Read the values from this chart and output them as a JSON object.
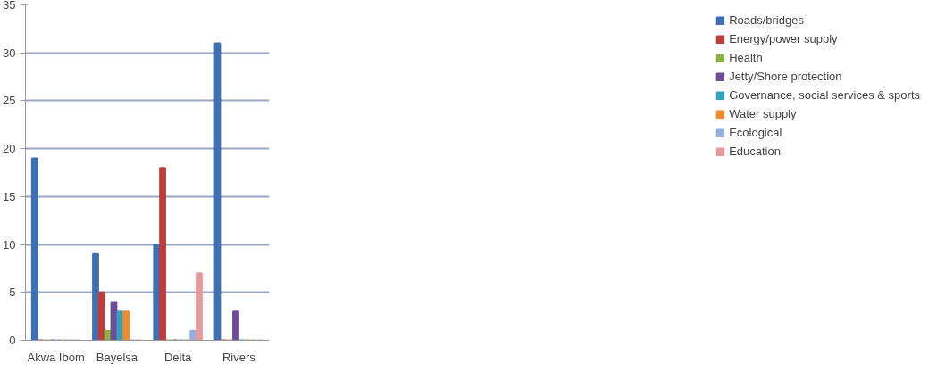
{
  "chart_data": {
    "type": "bar",
    "categories": [
      "Akwa Ibom",
      "Bayelsa",
      "Delta",
      "Rivers"
    ],
    "series": [
      {
        "name": "Roads/bridges",
        "color": "#3f6fb5",
        "values": [
          19,
          9,
          10,
          31
        ]
      },
      {
        "name": "Energy/power supply",
        "color": "#be3c3a",
        "values": [
          0,
          5,
          18,
          0
        ]
      },
      {
        "name": "Health",
        "color": "#8db243",
        "values": [
          0,
          1,
          0,
          0
        ]
      },
      {
        "name": "Jetty/Shore protection",
        "color": "#6e4c99",
        "values": [
          0,
          4,
          0,
          3
        ]
      },
      {
        "name": "Governance, social services & sports",
        "color": "#34a1bf",
        "values": [
          0,
          3,
          0,
          0
        ]
      },
      {
        "name": "Water supply",
        "color": "#f08c2a",
        "values": [
          0,
          3,
          0,
          0
        ]
      },
      {
        "name": "Ecological",
        "color": "#93b0de",
        "values": [
          0,
          0,
          1,
          0
        ]
      },
      {
        "name": "Education",
        "color": "#e69a9a",
        "values": [
          0,
          0,
          7,
          0
        ]
      }
    ],
    "ylim": [
      0,
      35
    ],
    "yticks": [
      0,
      5,
      10,
      15,
      20,
      25,
      30,
      35
    ],
    "grid": "y",
    "legend": "right"
  }
}
